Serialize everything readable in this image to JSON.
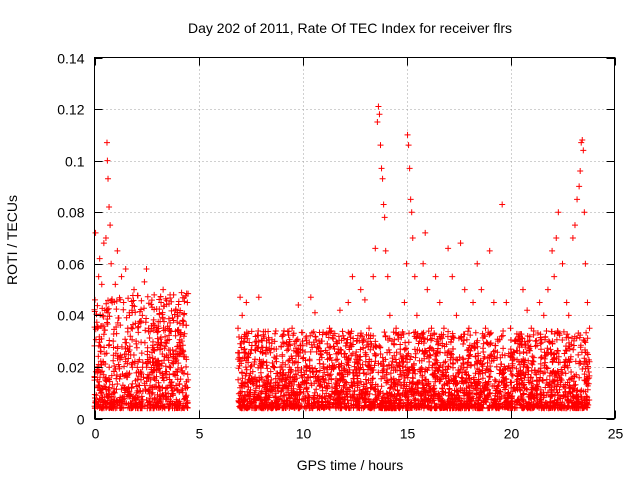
{
  "chart_data": {
    "type": "scatter",
    "title": "Day 202 of 2011, Rate Of TEC Index for receiver flrs",
    "xlabel": "GPS time / hours",
    "ylabel": "ROTI / TECUs",
    "xlim": [
      0,
      25
    ],
    "ylim": [
      0,
      0.14
    ],
    "grid": true,
    "x_ticks": [
      0,
      5,
      10,
      15,
      20,
      25
    ],
    "y_ticks": [
      0,
      0.02,
      0.04,
      0.06,
      0.08,
      0.1,
      0.12,
      0.14
    ],
    "x_tick_labels": [
      "0",
      "5",
      "10",
      "15",
      "20",
      "25"
    ],
    "y_tick_labels": [
      "0",
      "0.02",
      "0.04",
      "0.06",
      "0.08",
      "0.1",
      "0.12",
      "0.14"
    ],
    "marker": "+",
    "color": "#ff0000",
    "series": [
      {
        "name": "ROTI",
        "points": [
          [
            0.05,
            0.072
          ],
          [
            0.1,
            0.009
          ],
          [
            0.15,
            0.035
          ],
          [
            0.2,
            0.055
          ],
          [
            0.25,
            0.062
          ],
          [
            0.3,
            0.018
          ],
          [
            0.35,
            0.052
          ],
          [
            0.4,
            0.04
          ],
          [
            0.45,
            0.068
          ],
          [
            0.5,
            0.025
          ],
          [
            0.55,
            0.07
          ],
          [
            0.6,
            0.107
          ],
          [
            0.62,
            0.1
          ],
          [
            0.65,
            0.093
          ],
          [
            0.7,
            0.082
          ],
          [
            0.75,
            0.075
          ],
          [
            0.8,
            0.06
          ],
          [
            0.85,
            0.045
          ],
          [
            0.9,
            0.03
          ],
          [
            1.0,
            0.052
          ],
          [
            1.1,
            0.065
          ],
          [
            1.2,
            0.02
          ],
          [
            1.3,
            0.055
          ],
          [
            1.4,
            0.045
          ],
          [
            1.5,
            0.058
          ],
          [
            1.6,
            0.035
          ],
          [
            1.7,
            0.028
          ],
          [
            1.8,
            0.042
          ],
          [
            1.9,
            0.05
          ],
          [
            2.0,
            0.03
          ],
          [
            2.1,
            0.022
          ],
          [
            2.2,
            0.018
          ],
          [
            2.3,
            0.04
          ],
          [
            2.4,
            0.053
          ],
          [
            2.5,
            0.058
          ],
          [
            2.6,
            0.035
          ],
          [
            2.7,
            0.015
          ],
          [
            2.8,
            0.01
          ],
          [
            2.9,
            0.008
          ],
          [
            3.0,
            0.02
          ],
          [
            3.2,
            0.045
          ],
          [
            3.3,
            0.05
          ],
          [
            3.4,
            0.028
          ],
          [
            3.5,
            0.012
          ],
          [
            3.6,
            0.02
          ],
          [
            3.8,
            0.038
          ],
          [
            3.9,
            0.042
          ],
          [
            4.0,
            0.025
          ],
          [
            4.2,
            0.03
          ],
          [
            4.4,
            0.02
          ],
          [
            4.5,
            0.015
          ],
          [
            6.9,
            0.035
          ],
          [
            7.0,
            0.047
          ],
          [
            7.1,
            0.04
          ],
          [
            7.2,
            0.03
          ],
          [
            7.3,
            0.045
          ],
          [
            7.4,
            0.025
          ],
          [
            7.5,
            0.02
          ],
          [
            7.6,
            0.015
          ],
          [
            7.7,
            0.01
          ],
          [
            7.8,
            0.03
          ],
          [
            7.9,
            0.047
          ],
          [
            8.0,
            0.02
          ],
          [
            8.2,
            0.012
          ],
          [
            8.5,
            0.015
          ],
          [
            8.8,
            0.012
          ],
          [
            9.0,
            0.02
          ],
          [
            9.3,
            0.028
          ],
          [
            9.5,
            0.035
          ],
          [
            9.8,
            0.044
          ],
          [
            10.0,
            0.03
          ],
          [
            10.2,
            0.02
          ],
          [
            10.4,
            0.047
          ],
          [
            10.6,
            0.041
          ],
          [
            10.8,
            0.03
          ],
          [
            11.0,
            0.02
          ],
          [
            11.3,
            0.035
          ],
          [
            11.5,
            0.028
          ],
          [
            11.8,
            0.042
          ],
          [
            12.0,
            0.025
          ],
          [
            12.2,
            0.045
          ],
          [
            12.4,
            0.055
          ],
          [
            12.6,
            0.03
          ],
          [
            12.8,
            0.05
          ],
          [
            13.0,
            0.046
          ],
          [
            13.2,
            0.035
          ],
          [
            13.4,
            0.055
          ],
          [
            13.5,
            0.066
          ],
          [
            13.6,
            0.115
          ],
          [
            13.65,
            0.121
          ],
          [
            13.7,
            0.118
          ],
          [
            13.75,
            0.106
          ],
          [
            13.8,
            0.097
          ],
          [
            13.85,
            0.093
          ],
          [
            13.9,
            0.083
          ],
          [
            13.95,
            0.078
          ],
          [
            14.0,
            0.065
          ],
          [
            14.1,
            0.055
          ],
          [
            14.2,
            0.04
          ],
          [
            14.3,
            0.03
          ],
          [
            14.4,
            0.02
          ],
          [
            14.5,
            0.035
          ],
          [
            14.7,
            0.025
          ],
          [
            14.9,
            0.045
          ],
          [
            15.0,
            0.06
          ],
          [
            15.05,
            0.11
          ],
          [
            15.1,
            0.106
          ],
          [
            15.15,
            0.097
          ],
          [
            15.2,
            0.085
          ],
          [
            15.25,
            0.08
          ],
          [
            15.3,
            0.07
          ],
          [
            15.4,
            0.055
          ],
          [
            15.5,
            0.04
          ],
          [
            15.6,
            0.032
          ],
          [
            15.8,
            0.06
          ],
          [
            15.9,
            0.072
          ],
          [
            16.0,
            0.05
          ],
          [
            16.2,
            0.035
          ],
          [
            16.4,
            0.055
          ],
          [
            16.6,
            0.045
          ],
          [
            16.8,
            0.035
          ],
          [
            17.0,
            0.066
          ],
          [
            17.2,
            0.055
          ],
          [
            17.4,
            0.04
          ],
          [
            17.6,
            0.068
          ],
          [
            17.8,
            0.05
          ],
          [
            18.0,
            0.035
          ],
          [
            18.2,
            0.045
          ],
          [
            18.4,
            0.06
          ],
          [
            18.6,
            0.05
          ],
          [
            18.8,
            0.035
          ],
          [
            19.0,
            0.065
          ],
          [
            19.2,
            0.045
          ],
          [
            19.4,
            0.03
          ],
          [
            19.6,
            0.083
          ],
          [
            19.8,
            0.045
          ],
          [
            20.0,
            0.035
          ],
          [
            20.2,
            0.03
          ],
          [
            20.4,
            0.022
          ],
          [
            20.6,
            0.05
          ],
          [
            20.8,
            0.042
          ],
          [
            21.0,
            0.035
          ],
          [
            21.2,
            0.03
          ],
          [
            21.4,
            0.045
          ],
          [
            21.6,
            0.04
          ],
          [
            21.8,
            0.05
          ],
          [
            22.0,
            0.065
          ],
          [
            22.1,
            0.055
          ],
          [
            22.2,
            0.07
          ],
          [
            22.3,
            0.08
          ],
          [
            22.5,
            0.06
          ],
          [
            22.7,
            0.045
          ],
          [
            22.8,
            0.04
          ],
          [
            23.0,
            0.07
          ],
          [
            23.1,
            0.075
          ],
          [
            23.2,
            0.085
          ],
          [
            23.3,
            0.09
          ],
          [
            23.35,
            0.096
          ],
          [
            23.4,
            0.107
          ],
          [
            23.45,
            0.108
          ],
          [
            23.5,
            0.104
          ],
          [
            23.55,
            0.08
          ],
          [
            23.6,
            0.06
          ],
          [
            23.7,
            0.045
          ],
          [
            23.8,
            0.035
          ]
        ]
      }
    ]
  }
}
